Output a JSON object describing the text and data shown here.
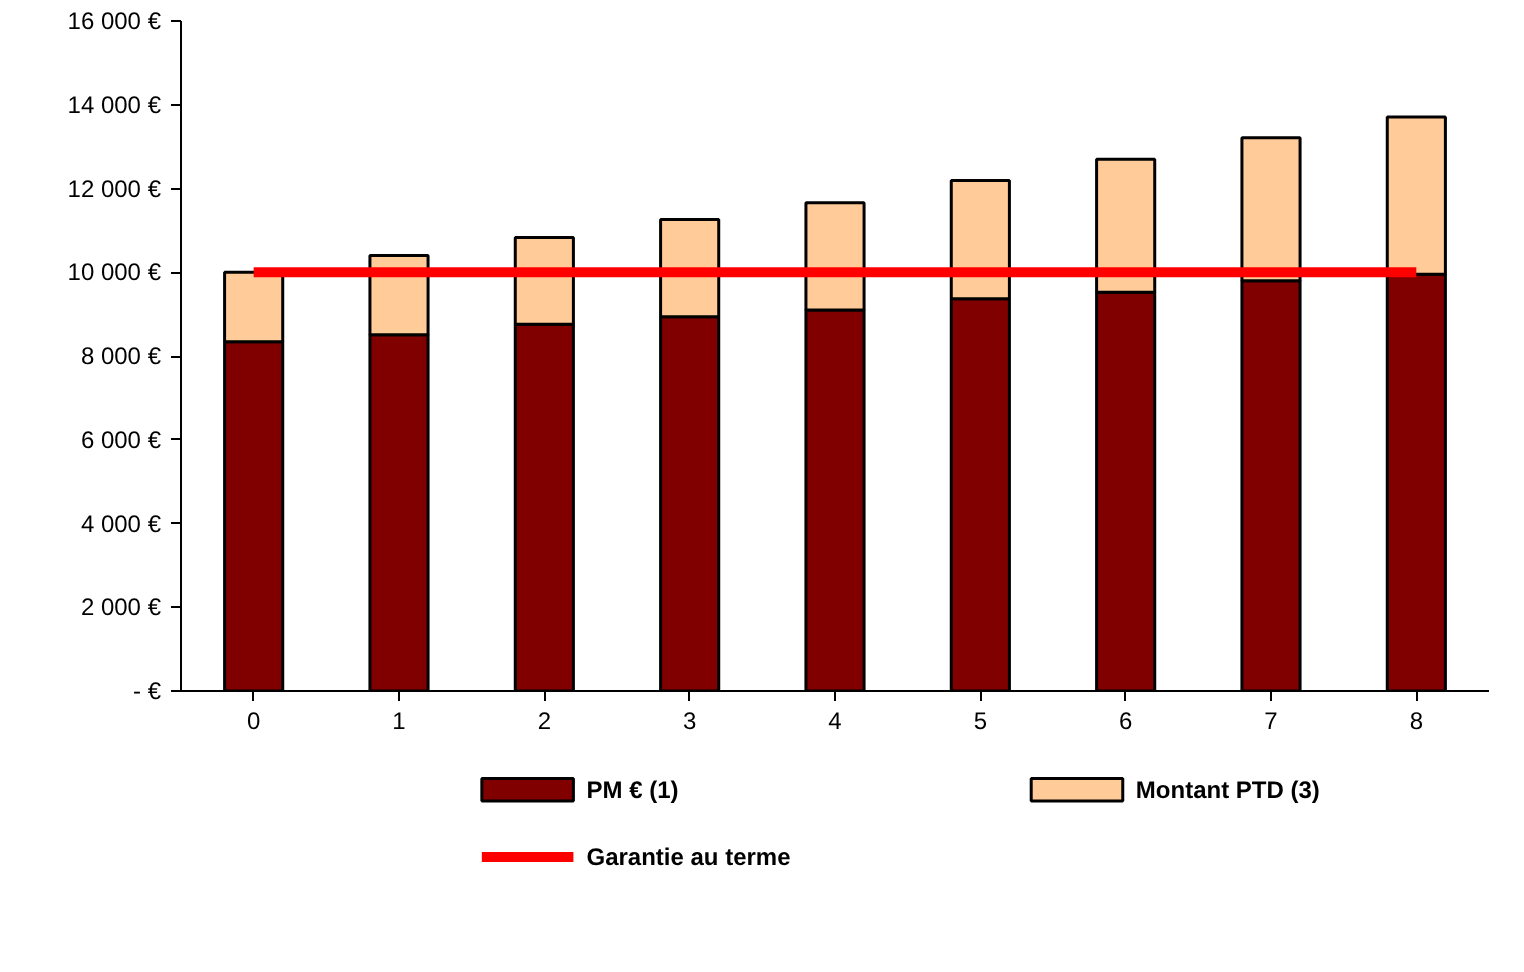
{
  "chart_data": {
    "type": "bar",
    "stacked": true,
    "categories": [
      "0",
      "1",
      "2",
      "3",
      "4",
      "5",
      "6",
      "7",
      "8"
    ],
    "series": [
      {
        "name": "PM € (1)",
        "color": "#800000",
        "values": [
          8340,
          8510,
          8760,
          8940,
          9100,
          9370,
          9520,
          9800,
          9950
        ]
      },
      {
        "name": "Montant PTD (3)",
        "color": "#ffcc99",
        "values": [
          1660,
          1890,
          2070,
          2320,
          2560,
          2820,
          3180,
          3410,
          3760
        ]
      },
      {
        "name": "Garantie au terme",
        "type": "line",
        "color": "#ff0000",
        "values": [
          10000,
          10000,
          10000,
          10000,
          10000,
          10000,
          10000,
          10000,
          10000
        ]
      }
    ],
    "ylim": [
      0,
      16000
    ],
    "yticks": [
      {
        "value": 0,
        "label": "- €"
      },
      {
        "value": 2000,
        "label": "2 000 €"
      },
      {
        "value": 4000,
        "label": "4 000 €"
      },
      {
        "value": 6000,
        "label": "6 000 €"
      },
      {
        "value": 8000,
        "label": "8 000 €"
      },
      {
        "value": 10000,
        "label": "10 000 €"
      },
      {
        "value": 12000,
        "label": "12 000 €"
      },
      {
        "value": 14000,
        "label": "14 000 €"
      },
      {
        "value": 16000,
        "label": "16 000 €"
      }
    ],
    "grid": false,
    "legend": "bottom"
  }
}
